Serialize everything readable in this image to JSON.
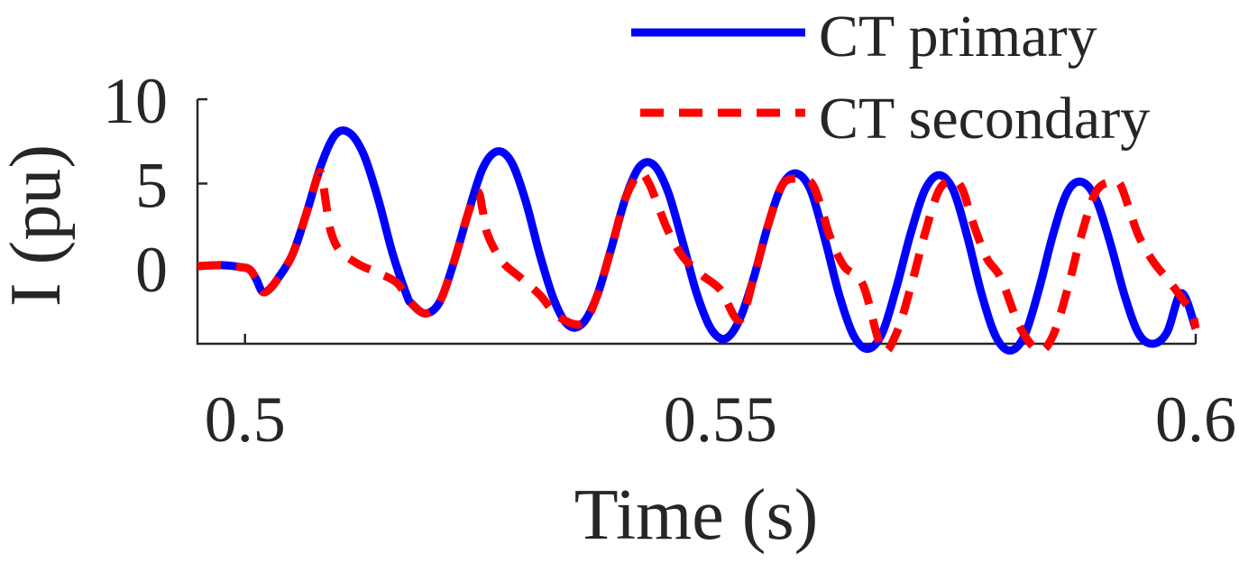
{
  "chart_data": {
    "type": "line",
    "xlabel": "Time (s)",
    "ylabel": "I (pu)",
    "xlim": [
      0.495,
      0.6
    ],
    "ylim": [
      -4.5,
      10
    ],
    "xticks": [
      0.5,
      0.55,
      0.6
    ],
    "xtick_labels": [
      "0.5",
      "0.55",
      "0.6"
    ],
    "yticks": [
      0,
      5,
      10
    ],
    "ytick_labels": [
      "0",
      "5",
      "10"
    ],
    "grid": false,
    "legend_position": "top-right",
    "series": [
      {
        "name": "CT primary",
        "color": "#0000ff",
        "style": "solid",
        "x": [
          0.495,
          0.4965,
          0.498,
          0.4995,
          0.5005,
          0.5012,
          0.5018,
          0.5025,
          0.5035,
          0.505,
          0.5065,
          0.508,
          0.5095,
          0.511,
          0.5125,
          0.514,
          0.5155,
          0.517,
          0.5175,
          0.519,
          0.5205,
          0.522,
          0.5235,
          0.525,
          0.5265,
          0.528,
          0.5295,
          0.531,
          0.5325,
          0.534,
          0.5355,
          0.537,
          0.5385,
          0.54,
          0.5415,
          0.543,
          0.5445,
          0.546,
          0.5475,
          0.549,
          0.5505,
          0.552,
          0.5535,
          0.555,
          0.5565,
          0.558,
          0.5595,
          0.561,
          0.5625,
          0.564,
          0.5655,
          0.567,
          0.5685,
          0.57,
          0.5715,
          0.573,
          0.5745,
          0.576,
          0.5775,
          0.579,
          0.5805,
          0.582,
          0.5835,
          0.585,
          0.5865,
          0.588,
          0.5895,
          0.591,
          0.5925,
          0.594,
          0.5955,
          0.597,
          0.5985,
          0.6
        ],
        "y": [
          0.1,
          0.15,
          0.15,
          0.05,
          -0.1,
          -0.7,
          -1.4,
          -1.3,
          -0.6,
          0.8,
          3.3,
          6.1,
          7.9,
          8.0,
          6.7,
          4.1,
          0.9,
          -1.6,
          -2.1,
          -2.7,
          -2.0,
          0.4,
          3.3,
          5.9,
          6.9,
          6.3,
          4.0,
          0.8,
          -1.9,
          -3.4,
          -3.3,
          -1.7,
          1.1,
          4.1,
          6.0,
          6.1,
          4.5,
          1.6,
          -1.5,
          -3.6,
          -4.2,
          -3.1,
          -0.6,
          2.5,
          4.9,
          5.6,
          4.6,
          1.7,
          -1.6,
          -4.0,
          -4.8,
          -3.9,
          -1.2,
          2.0,
          4.6,
          5.5,
          4.6,
          1.8,
          -1.6,
          -4.1,
          -4.9,
          -4.0,
          -1.3,
          2.0,
          4.5,
          5.1,
          4.1,
          1.5,
          -1.6,
          -3.9,
          -4.5,
          -3.8,
          -1.5,
          -3.6
        ]
      },
      {
        "name": "CT secondary",
        "color": "#ff0000",
        "style": "dashed",
        "x": [
          0.495,
          0.4965,
          0.498,
          0.4995,
          0.5005,
          0.5012,
          0.5018,
          0.5025,
          0.5035,
          0.505,
          0.5065,
          0.5075,
          0.508,
          0.5085,
          0.509,
          0.51,
          0.512,
          0.514,
          0.516,
          0.5175,
          0.519,
          0.5205,
          0.522,
          0.5235,
          0.5245,
          0.525,
          0.5255,
          0.527,
          0.529,
          0.531,
          0.533,
          0.5355,
          0.537,
          0.5385,
          0.54,
          0.5415,
          0.5425,
          0.5435,
          0.5445,
          0.546,
          0.548,
          0.55,
          0.552,
          0.5535,
          0.555,
          0.5565,
          0.558,
          0.5595,
          0.5605,
          0.5615,
          0.563,
          0.565,
          0.567,
          0.5685,
          0.57,
          0.5715,
          0.573,
          0.5745,
          0.5755,
          0.5765,
          0.578,
          0.5795,
          0.5815,
          0.5835,
          0.585,
          0.5865,
          0.588,
          0.5895,
          0.591,
          0.592,
          0.593,
          0.594,
          0.5955,
          0.5975,
          0.5995,
          0.6
        ],
        "y": [
          0.1,
          0.15,
          0.15,
          0.05,
          -0.1,
          -0.7,
          -1.4,
          -1.3,
          -0.6,
          0.8,
          3.3,
          5.2,
          5.6,
          3.9,
          2.2,
          1.0,
          0.2,
          -0.3,
          -0.9,
          -2.1,
          -2.7,
          -2.0,
          0.4,
          3.3,
          4.5,
          3.4,
          2.0,
          0.4,
          -0.6,
          -1.6,
          -2.9,
          -3.3,
          -1.7,
          1.1,
          4.1,
          5.6,
          5.0,
          3.6,
          2.2,
          0.7,
          -0.4,
          -1.3,
          -3.1,
          -0.6,
          2.5,
          4.9,
          5.3,
          5.1,
          3.8,
          1.9,
          0.1,
          -1.0,
          -4.8,
          -3.9,
          -1.2,
          2.0,
          4.6,
          5.2,
          4.6,
          2.8,
          0.6,
          -0.6,
          -3.5,
          -4.9,
          -4.0,
          -1.3,
          2.0,
          4.5,
          5.1,
          5.0,
          3.5,
          1.9,
          0.4,
          -1.0,
          -2.6,
          -3.6
        ]
      }
    ]
  }
}
